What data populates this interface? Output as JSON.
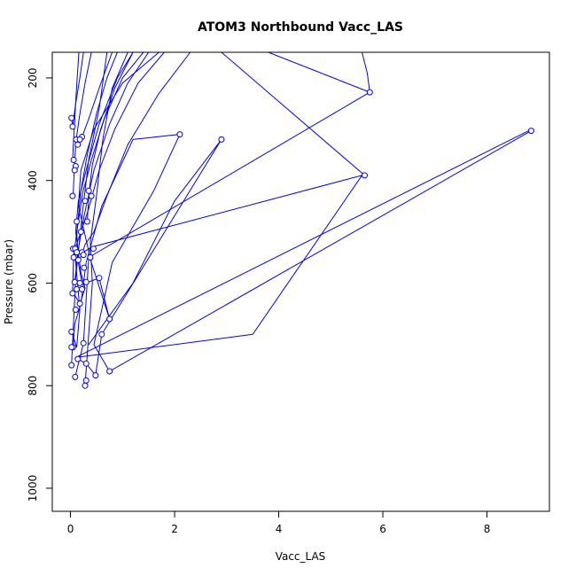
{
  "chart_data": {
    "type": "line",
    "title": "ATOM3 Northbound Vacc_LAS",
    "xlabel": "Vacc_LAS",
    "ylabel": "Pressure (mbar)",
    "xlim": [
      -0.35,
      9.2
    ],
    "ylim": [
      1045,
      150
    ],
    "y_reversed": true,
    "grid": false,
    "series_color": "#0000ff",
    "xticks": [
      0,
      2,
      4,
      6,
      8
    ],
    "yticks": [
      200,
      400,
      600,
      800,
      1000
    ],
    "series": [
      {
        "points": [
          [
            0.02,
            760
          ],
          [
            0.1,
            590
          ],
          [
            0.22,
            470
          ],
          [
            0.35,
            360
          ],
          [
            0.55,
            260
          ],
          [
            0.7,
            150
          ]
        ]
      },
      {
        "points": [
          [
            0.28,
            800
          ],
          [
            0.3,
            770
          ],
          [
            0.35,
            700
          ],
          [
            0.42,
            600
          ],
          [
            0.38,
            520
          ],
          [
            0.5,
            430
          ],
          [
            0.62,
            320
          ],
          [
            0.8,
            220
          ],
          [
            1.1,
            150
          ]
        ]
      },
      {
        "points": [
          [
            0.05,
            725
          ],
          [
            0.08,
            680
          ],
          [
            0.2,
            640
          ],
          [
            0.3,
            560
          ],
          [
            0.6,
            450
          ],
          [
            1.2,
            320
          ],
          [
            2.1,
            310
          ],
          [
            1.6,
            420
          ],
          [
            0.8,
            560
          ],
          [
            0.45,
            720
          ],
          [
            0.75,
            772
          ],
          [
            8.85,
            303
          ]
        ]
      },
      {
        "points": [
          [
            0.02,
            695
          ],
          [
            0.12,
            725
          ],
          [
            0.18,
            652
          ],
          [
            0.1,
            560
          ],
          [
            0.05,
            533
          ],
          [
            0.25,
            540
          ],
          [
            0.4,
            530
          ],
          [
            5.6,
            390
          ],
          [
            3.5,
            700
          ],
          [
            0.1,
            745
          ],
          [
            8.8,
            303
          ]
        ]
      },
      {
        "points": [
          [
            0.14,
            748
          ],
          [
            0.3,
            757
          ],
          [
            0.48,
            780
          ],
          [
            0.6,
            700
          ],
          [
            2.9,
            320
          ],
          [
            2.0,
            440
          ],
          [
            1.2,
            600
          ],
          [
            0.35,
            720
          ]
        ]
      },
      {
        "points": [
          [
            0.09,
            783
          ],
          [
            0.25,
            717
          ],
          [
            0.35,
            550
          ],
          [
            5.75,
            228
          ],
          [
            3.8,
            150
          ]
        ]
      },
      {
        "points": [
          [
            0.04,
            620
          ],
          [
            0.06,
            545
          ],
          [
            0.15,
            480
          ],
          [
            0.24,
            420
          ],
          [
            0.3,
            400
          ],
          [
            0.4,
            360
          ],
          [
            0.65,
            280
          ],
          [
            1.0,
            200
          ],
          [
            1.4,
            150
          ]
        ]
      },
      {
        "points": [
          [
            0.1,
            530
          ],
          [
            0.2,
            500
          ],
          [
            0.35,
            455
          ],
          [
            0.55,
            380
          ],
          [
            0.85,
            300
          ],
          [
            1.3,
            210
          ],
          [
            1.8,
            150
          ]
        ]
      },
      {
        "points": [
          [
            0.05,
            430
          ],
          [
            0.08,
            360
          ],
          [
            0.11,
            320
          ],
          [
            0.18,
            270
          ],
          [
            0.28,
            210
          ],
          [
            0.4,
            150
          ]
        ]
      },
      {
        "points": [
          [
            0.02,
            278
          ],
          [
            0.04,
            295
          ],
          [
            0.1,
            250
          ],
          [
            0.18,
            200
          ],
          [
            0.25,
            150
          ]
        ]
      },
      {
        "points": [
          [
            0.12,
            330
          ],
          [
            0.22,
            315
          ],
          [
            0.35,
            280
          ],
          [
            0.55,
            220
          ],
          [
            0.8,
            150
          ]
        ]
      },
      {
        "points": [
          [
            0.3,
            600
          ],
          [
            0.55,
            590
          ],
          [
            0.75,
            670
          ],
          [
            0.4,
            560
          ],
          [
            0.15,
            450
          ],
          [
            0.2,
            380
          ],
          [
            0.45,
            300
          ],
          [
            1.0,
            210
          ],
          [
            1.7,
            150
          ]
        ]
      },
      {
        "points": [
          [
            0.18,
            555
          ],
          [
            0.28,
            525
          ],
          [
            0.45,
            500
          ],
          [
            0.7,
            430
          ],
          [
            1.1,
            330
          ],
          [
            1.7,
            230
          ],
          [
            2.3,
            150
          ]
        ]
      },
      {
        "points": [
          [
            0.22,
            600
          ],
          [
            0.15,
            560
          ],
          [
            0.12,
            500
          ],
          [
            0.2,
            420
          ],
          [
            0.32,
            350
          ],
          [
            0.5,
            270
          ],
          [
            0.7,
            200
          ],
          [
            0.9,
            150
          ]
        ]
      },
      {
        "points": [
          [
            0.06,
            620
          ],
          [
            0.18,
            640
          ],
          [
            0.28,
            610
          ],
          [
            0.2,
            580
          ],
          [
            0.1,
            500
          ],
          [
            0.15,
            440
          ],
          [
            0.3,
            380
          ],
          [
            0.55,
            290
          ],
          [
            0.9,
            200
          ],
          [
            1.2,
            150
          ]
        ]
      },
      {
        "points": [
          [
            2.9,
            150
          ],
          [
            5.65,
            390
          ]
        ]
      },
      {
        "points": [
          [
            5.75,
            228
          ],
          [
            5.7,
            190
          ],
          [
            5.6,
            150
          ]
        ]
      },
      {
        "points": [
          [
            0.04,
            360
          ],
          [
            0.07,
            300
          ],
          [
            0.11,
            230
          ],
          [
            0.16,
            150
          ]
        ]
      },
      {
        "points": [
          [
            0.08,
            600
          ],
          [
            0.14,
            540
          ],
          [
            0.26,
            470
          ],
          [
            0.45,
            380
          ],
          [
            0.75,
            290
          ],
          [
            1.1,
            210
          ],
          [
            1.5,
            150
          ]
        ]
      },
      {
        "points": [
          [
            0.32,
            480
          ],
          [
            0.36,
            420
          ],
          [
            0.42,
            370
          ],
          [
            0.58,
            300
          ],
          [
            0.85,
            220
          ],
          [
            1.2,
            150
          ]
        ]
      }
    ],
    "markers": [
      [
        0.02,
        278
      ],
      [
        0.04,
        295
      ],
      [
        0.11,
        320
      ],
      [
        0.14,
        330
      ],
      [
        0.22,
        315
      ],
      [
        0.18,
        320
      ],
      [
        0.06,
        360
      ],
      [
        0.1,
        372
      ],
      [
        0.08,
        380
      ],
      [
        0.04,
        430
      ],
      [
        0.35,
        420
      ],
      [
        0.4,
        430
      ],
      [
        0.28,
        440
      ],
      [
        0.32,
        480
      ],
      [
        0.12,
        480
      ],
      [
        0.2,
        500
      ],
      [
        0.05,
        533
      ],
      [
        0.09,
        533
      ],
      [
        0.12,
        540
      ],
      [
        0.22,
        540
      ],
      [
        0.44,
        533
      ],
      [
        0.25,
        545
      ],
      [
        0.06,
        550
      ],
      [
        0.15,
        555
      ],
      [
        0.38,
        550
      ],
      [
        0.26,
        570
      ],
      [
        0.08,
        598
      ],
      [
        0.18,
        600
      ],
      [
        0.3,
        598
      ],
      [
        0.55,
        590
      ],
      [
        0.12,
        612
      ],
      [
        0.04,
        620
      ],
      [
        0.18,
        640
      ],
      [
        0.22,
        612
      ],
      [
        0.1,
        652
      ],
      [
        0.75,
        670
      ],
      [
        0.02,
        695
      ],
      [
        0.6,
        700
      ],
      [
        0.25,
        717
      ],
      [
        0.05,
        725
      ],
      [
        0.02,
        725
      ],
      [
        0.14,
        748
      ],
      [
        0.3,
        757
      ],
      [
        0.02,
        760
      ],
      [
        0.75,
        772
      ],
      [
        0.48,
        780
      ],
      [
        0.09,
        783
      ],
      [
        0.3,
        790
      ],
      [
        0.28,
        800
      ],
      [
        2.1,
        310
      ],
      [
        2.9,
        320
      ],
      [
        5.65,
        390
      ],
      [
        5.75,
        228
      ],
      [
        8.85,
        303
      ]
    ]
  }
}
